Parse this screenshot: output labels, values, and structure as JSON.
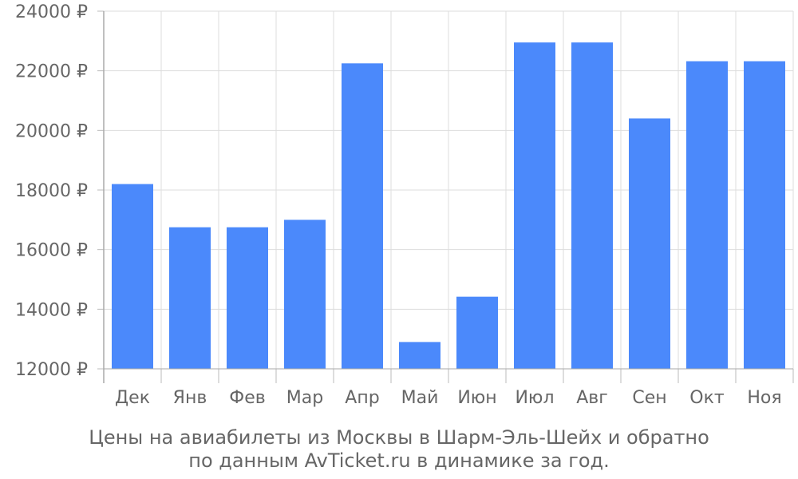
{
  "chart_data": {
    "type": "bar",
    "categories": [
      "Дек",
      "Янв",
      "Фев",
      "Мар",
      "Апр",
      "Май",
      "Июн",
      "Июл",
      "Авг",
      "Сен",
      "Окт",
      "Ноя"
    ],
    "values": [
      18200,
      16750,
      16750,
      17000,
      22250,
      12900,
      14420,
      22950,
      22950,
      20400,
      22320,
      22320
    ],
    "ylim": [
      12000,
      24000
    ],
    "yticks": [
      12000,
      14000,
      16000,
      18000,
      20000,
      22000,
      24000
    ],
    "ytick_suffix": " ₽",
    "bar_color": "#4b89fb",
    "grid": true
  },
  "caption": {
    "line1": "Цены на авиабилеты из Москвы в Шарм-Эль-Шейх и обратно",
    "line2": "по данным AvTicket.ru в динамике за год."
  }
}
